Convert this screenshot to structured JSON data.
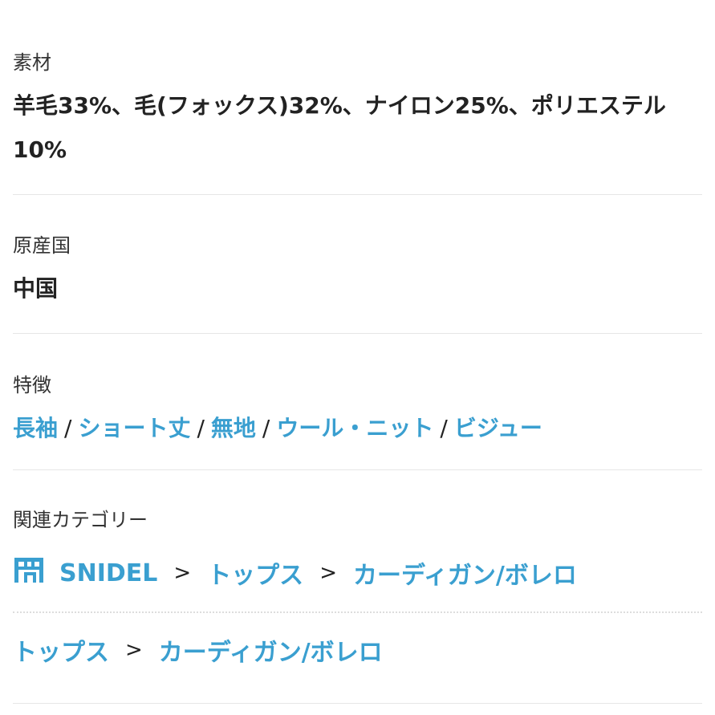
{
  "material": {
    "label": "素材",
    "value": "羊毛33%、毛(フォックス)32%、ナイロン25%、ポリエステル10%"
  },
  "origin": {
    "label": "原産国",
    "value": "中国"
  },
  "features": {
    "label": "特徴",
    "tags": [
      "長袖",
      "ショート丈",
      "無地",
      "ウール・ニット",
      "ビジュー"
    ],
    "separator": "/"
  },
  "categories": {
    "label": "関連カテゴリー",
    "breadcrumb1": [
      "SNIDEL",
      "トップス",
      "カーディガン/ボレロ"
    ],
    "breadcrumb2": [
      "トップス",
      "カーディガン/ボレロ"
    ],
    "separator": ">",
    "icon": "shop-icon"
  },
  "colors": {
    "link": "#3a9fd0"
  }
}
